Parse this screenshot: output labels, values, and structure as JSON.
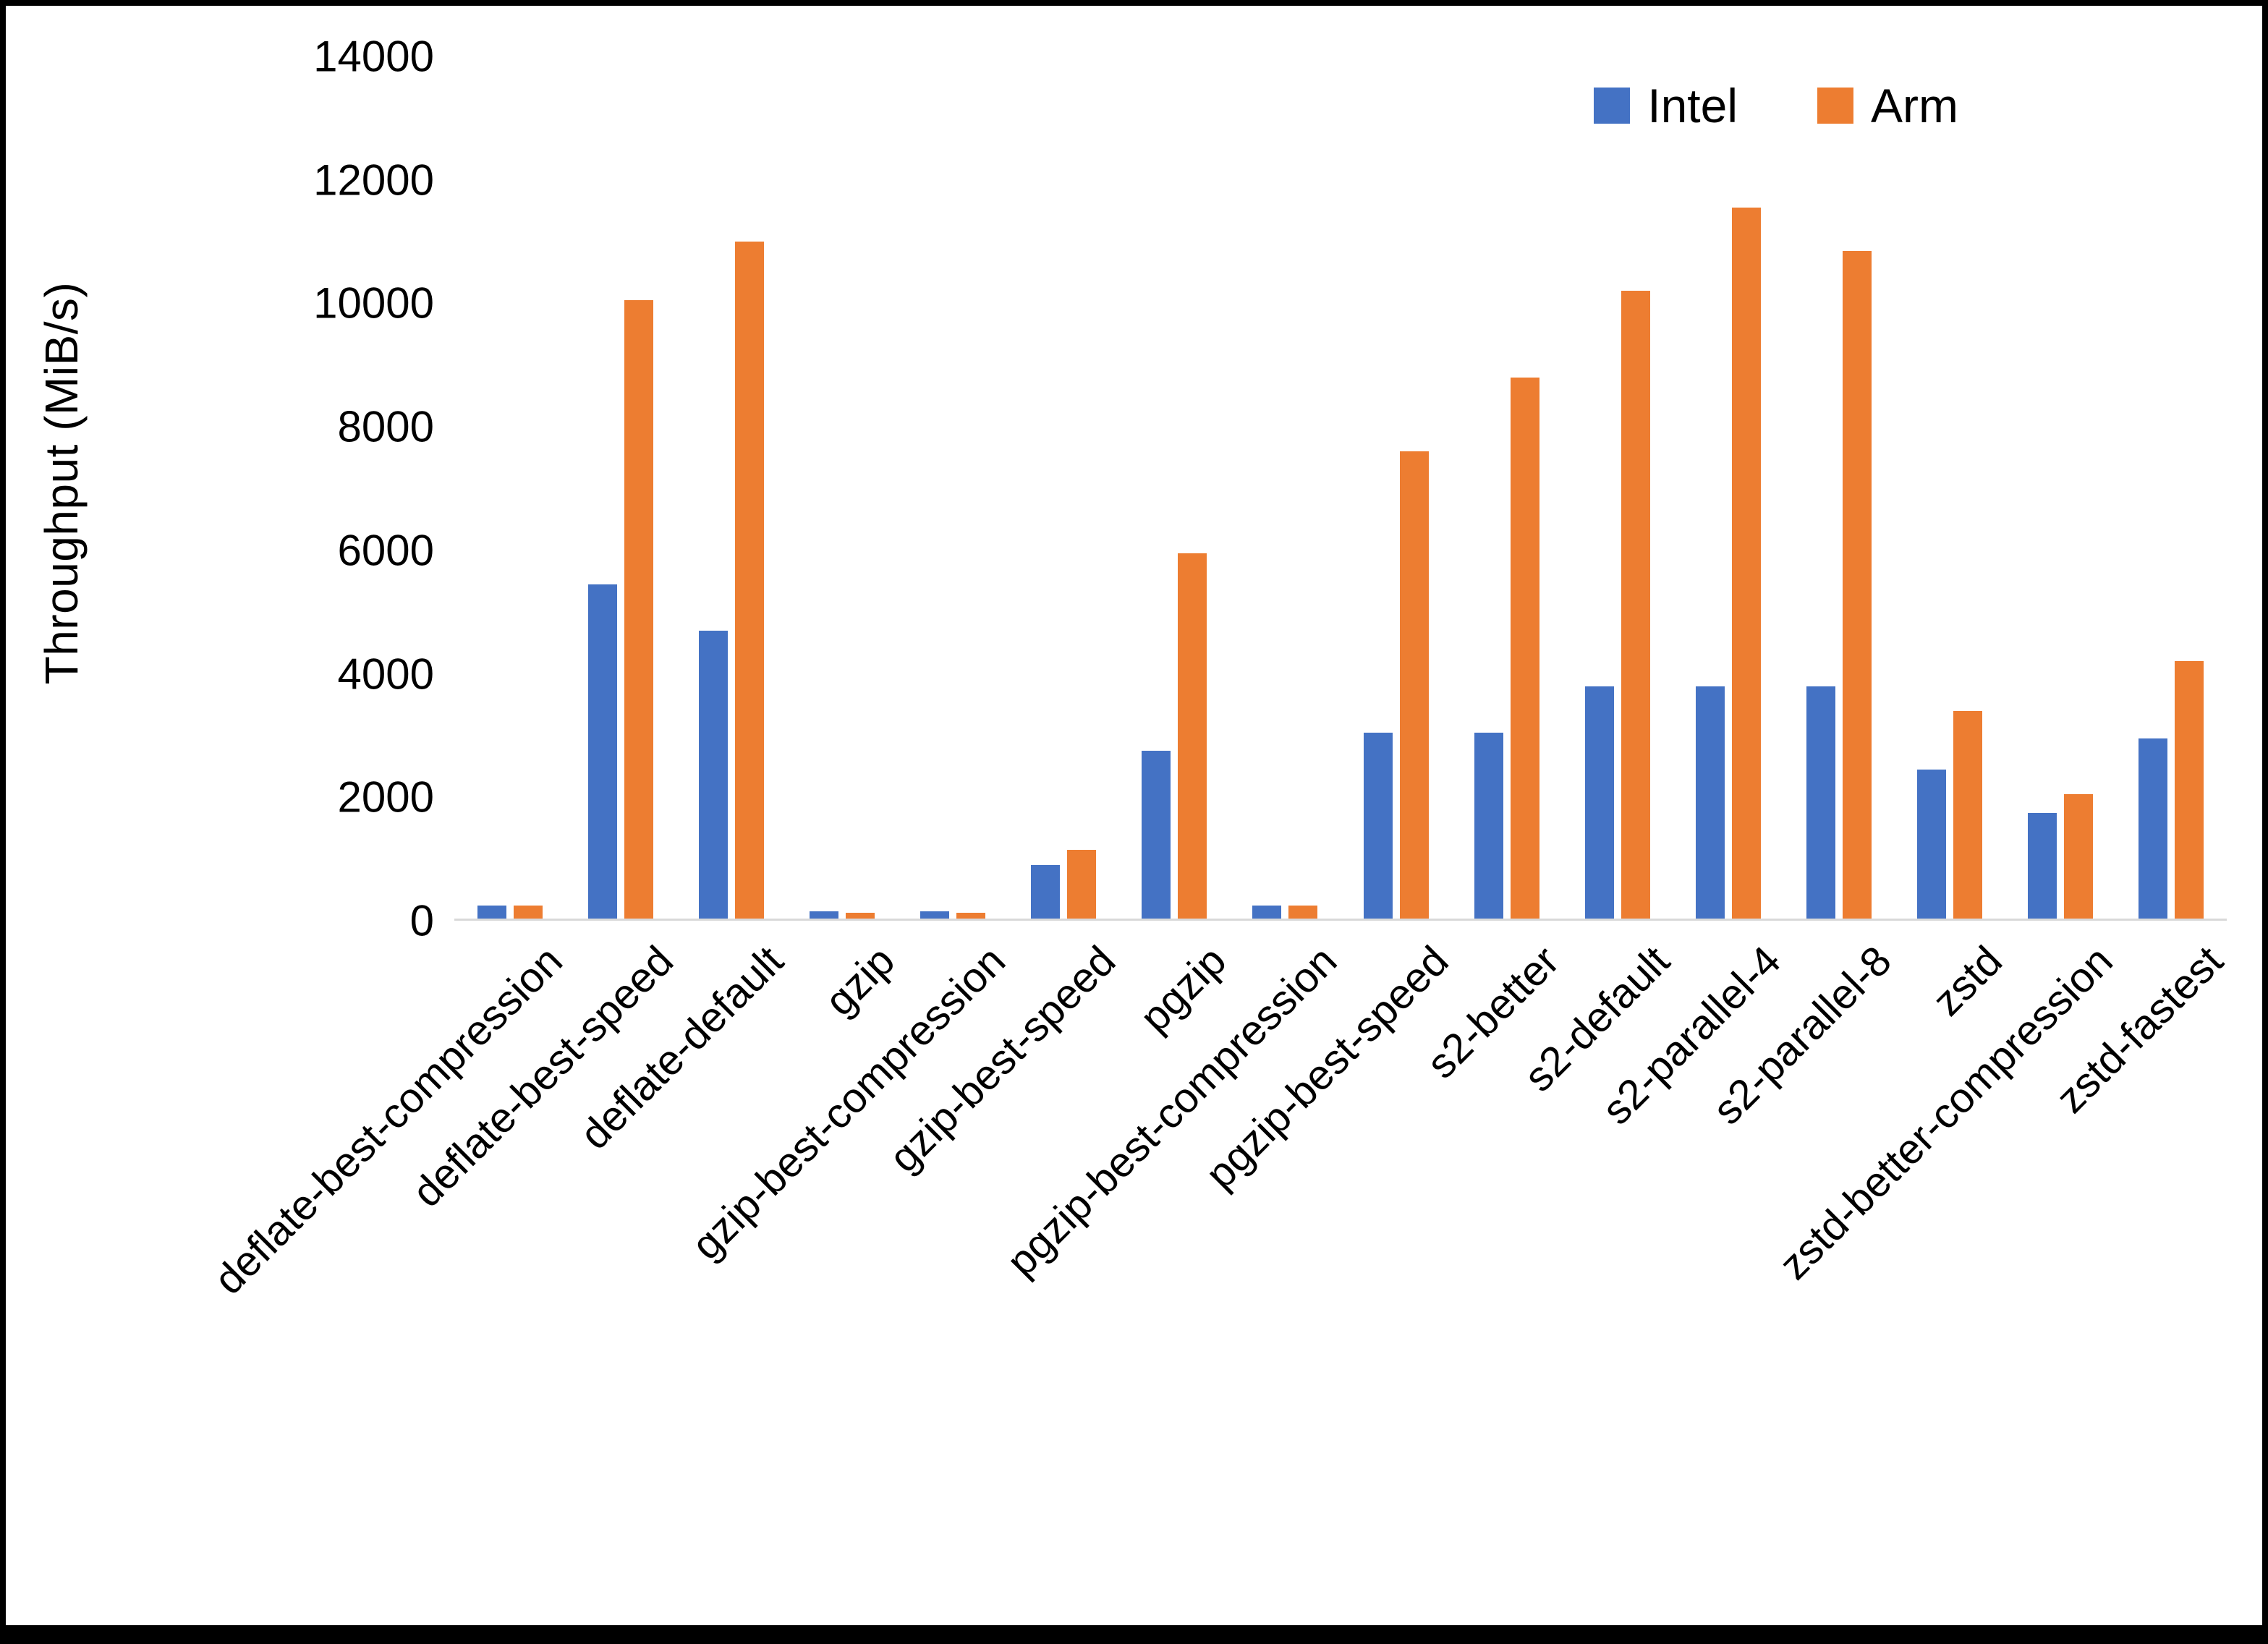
{
  "page": {
    "background_color": "#ffffff",
    "frame_color": "#000000"
  },
  "chart_data": {
    "type": "bar",
    "title": "",
    "xlabel": "",
    "ylabel": "Throughput (MiB/s)",
    "ylim": [
      0,
      14000
    ],
    "yticks": [
      0,
      2000,
      4000,
      6000,
      8000,
      10000,
      12000,
      14000
    ],
    "grid": false,
    "legend_position": "top-right",
    "categories": [
      "deflate-best-compression",
      "deflate-best-speed",
      "deflate-default",
      "gzip",
      "gzip-best-compression",
      "gzip-best-speed",
      "pgzip",
      "pgzip-best-compression",
      "pgzip-best-speed",
      "s2-better",
      "s2-default",
      "s2-parallel-4",
      "s2-parallel-8",
      "zstd",
      "zstd-better-compression",
      "zstd-fastest"
    ],
    "series": [
      {
        "name": "Intel",
        "color": "#4472C4",
        "values": [
          250,
          5450,
          4700,
          150,
          150,
          900,
          2750,
          250,
          3050,
          3050,
          3800,
          3800,
          3800,
          2450,
          1750,
          2950
        ]
      },
      {
        "name": "Arm",
        "color": "#ED7D31",
        "values": [
          250,
          10050,
          11000,
          130,
          130,
          1150,
          5950,
          250,
          7600,
          8800,
          10200,
          11550,
          10850,
          3400,
          2050,
          4200
        ]
      }
    ]
  }
}
